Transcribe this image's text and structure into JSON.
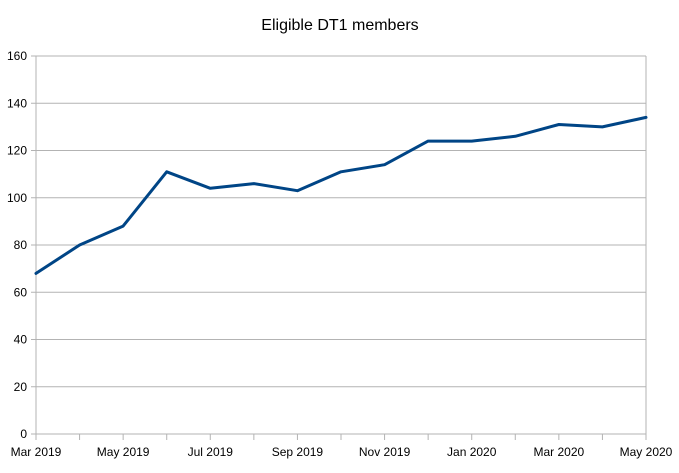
{
  "chart_data": {
    "type": "line",
    "title": "Eligible DT1 members",
    "xlabel": "",
    "ylabel": "",
    "x": [
      "Mar 2019",
      "Apr 2019",
      "May 2019",
      "Jun 2019",
      "Jul 2019",
      "Aug 2019",
      "Sep 2019",
      "Oct 2019",
      "Nov 2019",
      "Dec 2019",
      "Jan 2020",
      "Feb 2020",
      "Mar 2020",
      "Apr 2020",
      "May 2020"
    ],
    "x_tick_labels": [
      "Mar 2019",
      "May 2019",
      "Jul 2019",
      "Sep 2019",
      "Nov 2019",
      "Jan 2020",
      "Mar 2020",
      "May 2020"
    ],
    "series": [
      {
        "values": [
          68,
          80,
          88,
          111,
          104,
          106,
          103,
          111,
          114,
          124,
          124,
          126,
          131,
          130,
          134
        ],
        "color": "#004586"
      }
    ],
    "ylim": [
      0,
      160
    ],
    "y_ticks": [
      0,
      20,
      40,
      60,
      80,
      100,
      120,
      140,
      160
    ],
    "grid": "horizontal",
    "legend": "none"
  }
}
